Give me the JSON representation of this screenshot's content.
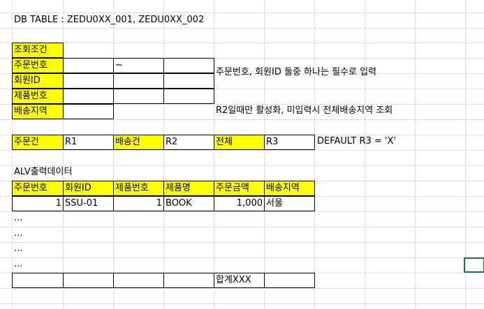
{
  "header": {
    "db_table": "DB TABLE : ZEDU0XX_001, ZEDU0XX_002"
  },
  "query": {
    "title": "조회조건",
    "rows": [
      "주문번호",
      "회원ID",
      "제품번호",
      "배송지역"
    ],
    "tilde": "~",
    "note1": "주문번호, 회원ID 둘중 하나는 필수로 입력",
    "note2": "R2일때만 활성화, 미입력시 전체배송지역 조회"
  },
  "radio": {
    "order_label": "주문건",
    "order_value": "R1",
    "ship_label": "배송건",
    "ship_value": "R2",
    "all_label": "전체",
    "all_value": "R3",
    "default_note": "DEFAULT R3 = 'X'"
  },
  "alv": {
    "title": "ALV출력데이터",
    "headers": [
      "주문번호",
      "회원ID",
      "제품번호",
      "제품명",
      "주문금액",
      "배송지역"
    ],
    "row1": [
      "1",
      "SSU-01",
      "1",
      "BOOK",
      "1,000",
      "서울"
    ],
    "ellipsis": [
      "...",
      "...",
      "...",
      "..."
    ],
    "total": "합계XXX"
  }
}
